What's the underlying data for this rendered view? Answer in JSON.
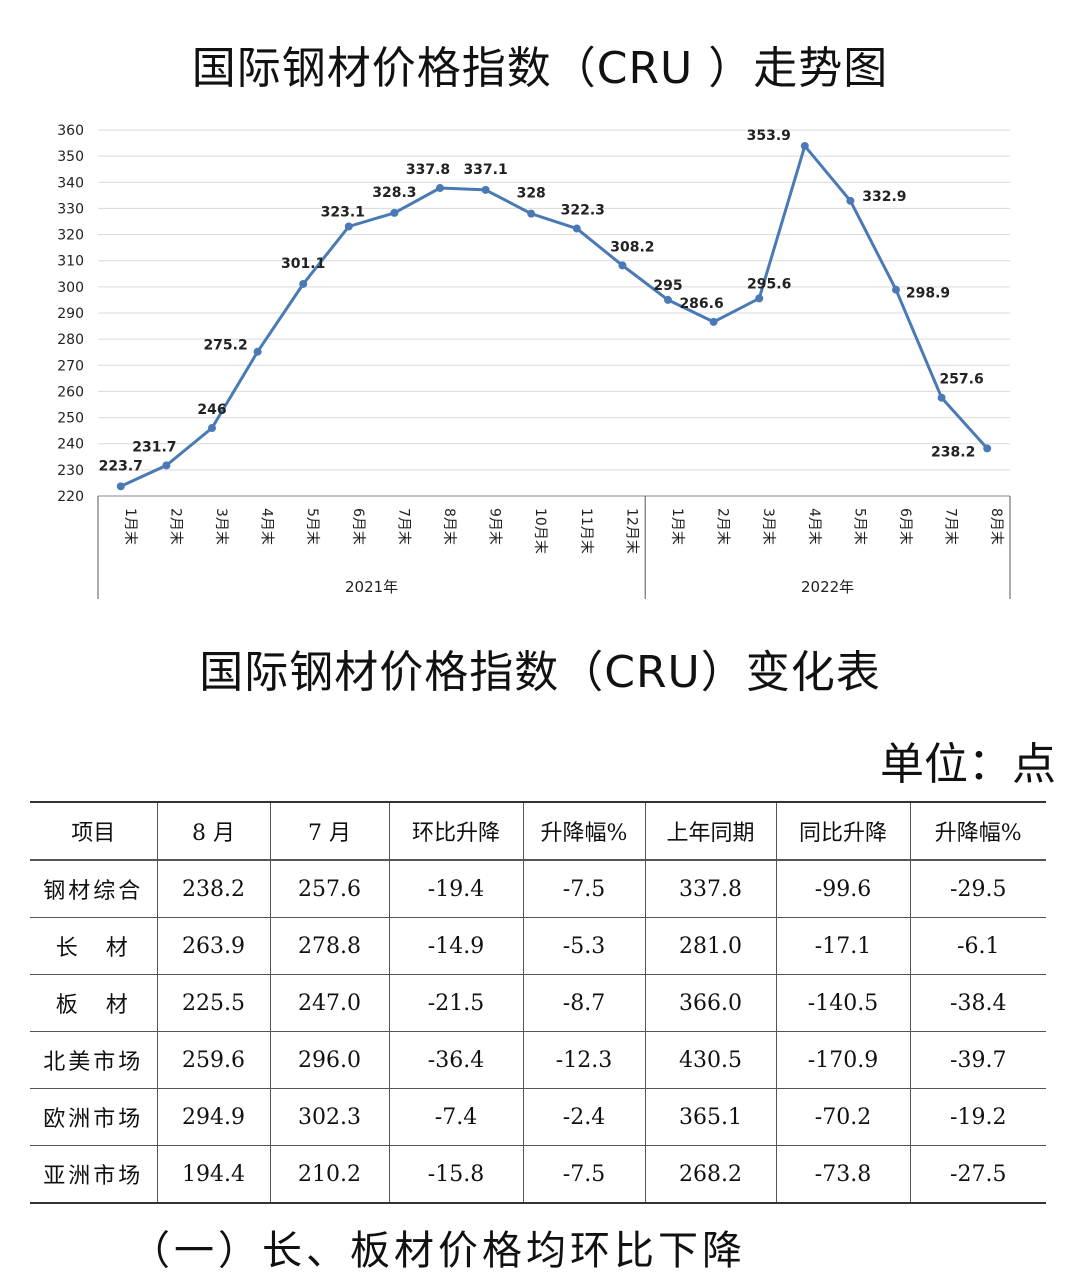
{
  "chart_title": "国际钢材价格指数（CRU ）走势图",
  "chart_data": {
    "type": "line",
    "title": "国际钢材价格指数（CRU ）走势图",
    "ylim": [
      220,
      360
    ],
    "yticks": [
      220,
      230,
      240,
      250,
      260,
      270,
      280,
      290,
      300,
      310,
      320,
      330,
      340,
      350,
      360
    ],
    "grid": true,
    "line_color": "#4a7ab5",
    "categories": [
      "1月末",
      "2月末",
      "3月末",
      "4月末",
      "5月末",
      "6月末",
      "7月末",
      "8月末",
      "9月末",
      "10月末",
      "11月末",
      "12月末",
      "1月末",
      "2月末",
      "3月末",
      "4月末",
      "5月末",
      "6月末",
      "7月末",
      "8月末"
    ],
    "years": [
      {
        "label": "2021年",
        "count": 12
      },
      {
        "label": "2022年",
        "count": 8
      }
    ],
    "values": [
      223.7,
      231.7,
      246,
      275.2,
      301.1,
      323.1,
      328.3,
      337.8,
      337.1,
      328,
      322.3,
      308.2,
      295,
      286.6,
      295.6,
      353.9,
      332.9,
      298.9,
      257.6,
      238.2
    ],
    "data_labels": [
      "223.7",
      "231.7",
      "246",
      "275.2",
      "301.1",
      "323.1",
      "328.3",
      "337.8",
      "337.1",
      "328",
      "322.3",
      "308.2",
      "295",
      "286.6",
      "295.6",
      "353.9",
      "332.9",
      "298.9",
      "257.6",
      "238.2"
    ]
  },
  "table_title": "国际钢材价格指数（CRU）变化表",
  "unit_label": "单位：点",
  "table": {
    "headers": [
      "项目",
      "8 月",
      "7 月",
      "环比升降",
      "升降幅%",
      "上年同期",
      "同比升降",
      "升降幅%"
    ],
    "rows": [
      [
        "钢材综合",
        "238.2",
        "257.6",
        "-19.4",
        "-7.5",
        "337.8",
        "-99.6",
        "-29.5"
      ],
      [
        "长　材",
        "263.9",
        "278.8",
        "-14.9",
        "-5.3",
        "281.0",
        "-17.1",
        "-6.1"
      ],
      [
        "板　材",
        "225.5",
        "247.0",
        "-21.5",
        "-8.7",
        "366.0",
        "-140.5",
        "-38.4"
      ],
      [
        "北美市场",
        "259.6",
        "296.0",
        "-36.4",
        "-12.3",
        "430.5",
        "-170.9",
        "-39.7"
      ],
      [
        "欧洲市场",
        "294.9",
        "302.3",
        "-7.4",
        "-2.4",
        "365.1",
        "-70.2",
        "-19.2"
      ],
      [
        "亚洲市场",
        "194.4",
        "210.2",
        "-15.8",
        "-7.5",
        "268.2",
        "-73.8",
        "-27.5"
      ]
    ]
  },
  "footer_text": "（一）长、板材价格均环比下降"
}
